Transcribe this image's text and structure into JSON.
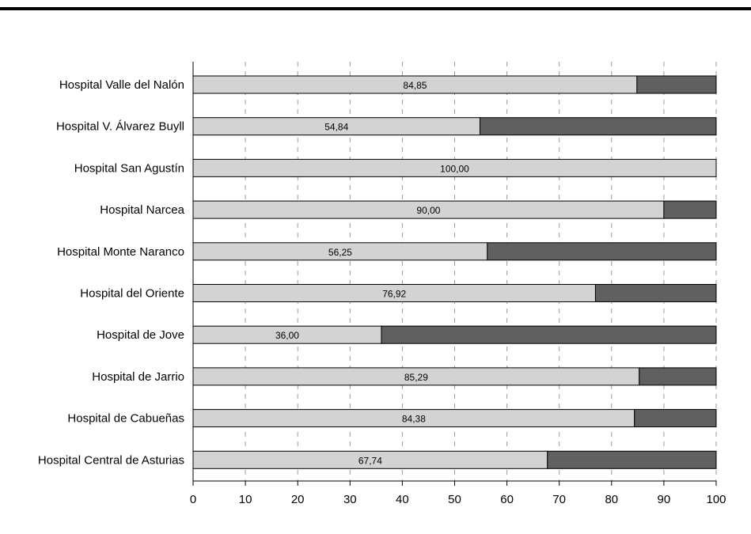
{
  "chart_data": {
    "type": "bar",
    "orientation": "horizontal",
    "stacked": true,
    "categories": [
      "Hospital Valle del Nalón",
      "Hospital V. Álvarez Buyll",
      "Hospital San Agustín",
      "Hospital Narcea",
      "Hospital Monte Naranco",
      "Hospital del Oriente",
      "Hospital de Jove",
      "Hospital de Jarrio",
      "Hospital de Cabueñas",
      "Hospital Central de Asturias"
    ],
    "series": [
      {
        "values": [
          84.85,
          54.84,
          100.0,
          90.0,
          56.25,
          76.92,
          36.0,
          85.29,
          84.38,
          67.74
        ],
        "data_labels": [
          "84,85",
          "54,84",
          "100,00",
          "90,00",
          "56,25",
          "76,92",
          "36,00",
          "85,29",
          "84,38",
          "67,74"
        ],
        "color": "#d3d3d3"
      },
      {
        "values": [
          15.15,
          45.16,
          0.0,
          10.0,
          43.75,
          23.08,
          64.0,
          14.71,
          15.62,
          32.26
        ],
        "color": "#606060"
      }
    ],
    "x_ticks": [
      "0",
      "10",
      "20",
      "30",
      "40",
      "50",
      "60",
      "70",
      "80",
      "90",
      "100"
    ],
    "xlim": [
      0,
      100
    ],
    "grid": "vertical dashed",
    "legend": "none",
    "title": "",
    "xlabel": "",
    "ylabel": ""
  }
}
